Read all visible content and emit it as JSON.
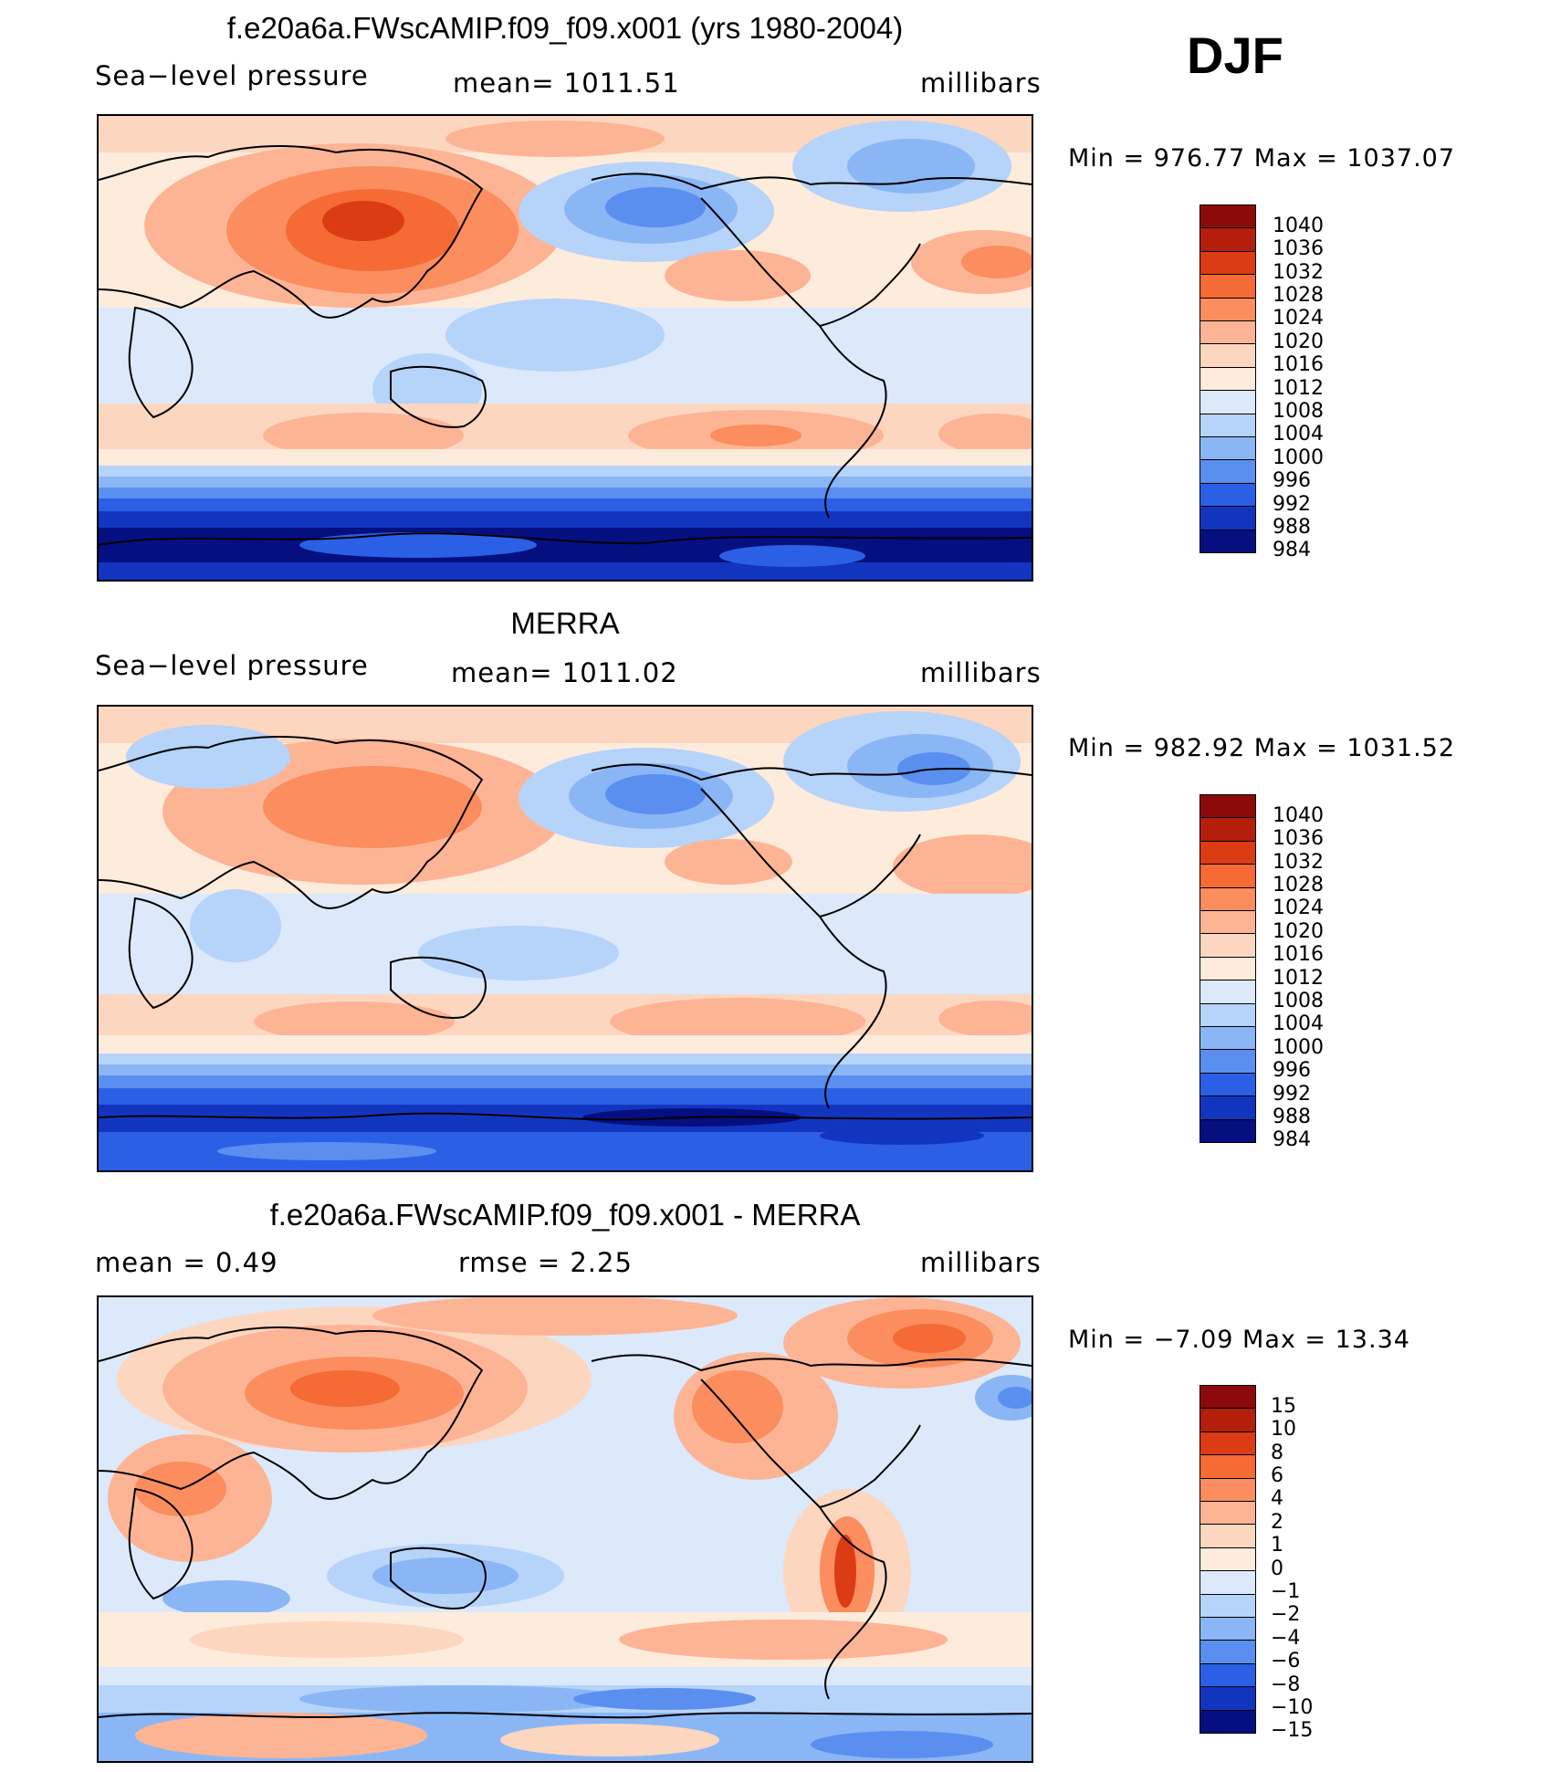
{
  "season": "DJF",
  "panels": [
    {
      "title": "f.e20a6a.FWscAMIP.f09_f09.x001 (yrs 1980-2004)",
      "left_label": "Sea−level pressure",
      "center_label": "mean=  1011.51",
      "right_label": "millibars",
      "minmax": "Min  =  976.77  Max  =  1037.07",
      "colorbar_labels": [
        "1040",
        "1036",
        "1032",
        "1028",
        "1024",
        "1020",
        "1016",
        "1012",
        "1008",
        "1004",
        "1000",
        "996",
        "992",
        "988",
        "984"
      ],
      "colorbar_colors": [
        "#8c0a0a",
        "#b41e0a",
        "#dc3c14",
        "#f56a35",
        "#fb8d5e",
        "#fdb495",
        "#fdd6c0",
        "#fdebdc",
        "#dbe9fb",
        "#b6d3fa",
        "#8ab6f6",
        "#5a8ff0",
        "#2b60e6",
        "#1235c0",
        "#050f80"
      ]
    },
    {
      "title": "MERRA",
      "left_label": "Sea−level pressure",
      "center_label": "mean=  1011.02",
      "right_label": "millibars",
      "minmax": "Min  =  982.92  Max  =  1031.52",
      "colorbar_labels": [
        "1040",
        "1036",
        "1032",
        "1028",
        "1024",
        "1020",
        "1016",
        "1012",
        "1008",
        "1004",
        "1000",
        "996",
        "992",
        "988",
        "984"
      ],
      "colorbar_colors": [
        "#8c0a0a",
        "#b41e0a",
        "#dc3c14",
        "#f56a35",
        "#fb8d5e",
        "#fdb495",
        "#fdd6c0",
        "#fdebdc",
        "#dbe9fb",
        "#b6d3fa",
        "#8ab6f6",
        "#5a8ff0",
        "#2b60e6",
        "#1235c0",
        "#050f80"
      ]
    },
    {
      "title": "f.e20a6a.FWscAMIP.f09_f09.x001 - MERRA",
      "left_label": "mean  =     0.49",
      "center_label": "rmse  =     2.25",
      "right_label": "millibars",
      "minmax": "Min  =   −7.09  Max  =    13.34",
      "colorbar_labels": [
        "15",
        "10",
        "8",
        "6",
        "4",
        "2",
        "1",
        "0",
        "−1",
        "−2",
        "−4",
        "−6",
        "−8",
        "−10",
        "−15"
      ],
      "colorbar_colors": [
        "#8c0a0a",
        "#b41e0a",
        "#dc3c14",
        "#f56a35",
        "#fb8d5e",
        "#fdb495",
        "#fdd6c0",
        "#fdebdc",
        "#dbe9fb",
        "#b6d3fa",
        "#8ab6f6",
        "#5a8ff0",
        "#2b60e6",
        "#1235c0",
        "#050f80"
      ]
    }
  ]
}
